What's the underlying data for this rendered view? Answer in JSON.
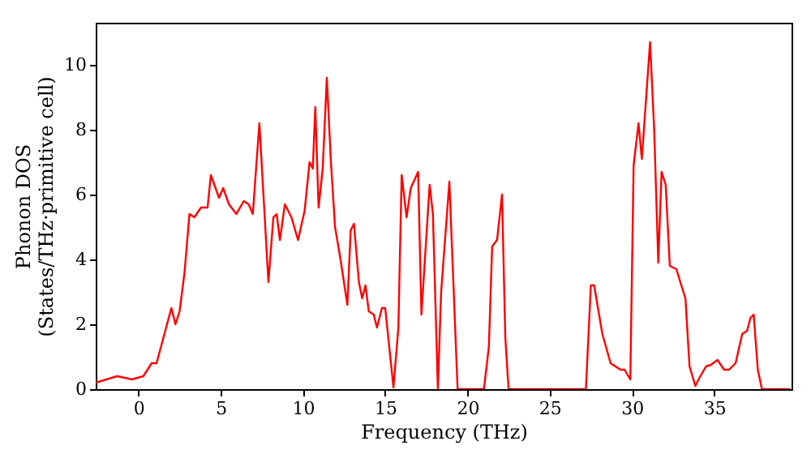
{
  "chart_data": {
    "type": "line",
    "xlabel": "Frequency (THz)",
    "ylabel": "Phonon DOS\n(States/THz·primitive cell)",
    "xlim": [
      -2.6,
      39.7
    ],
    "ylim": [
      0,
      11.3
    ],
    "xticks": [
      0,
      5,
      10,
      15,
      20,
      25,
      30,
      35
    ],
    "yticks": [
      0,
      2,
      4,
      6,
      8,
      10
    ],
    "grid": false,
    "marker": "none",
    "line_style": "solid",
    "series": [
      {
        "color": "#ff0000",
        "x": [
          -2.6,
          -1.3,
          -0.4,
          0.3,
          0.8,
          1.1,
          2.0,
          2.25,
          2.5,
          2.8,
          3.1,
          3.4,
          3.8,
          4.2,
          4.4,
          4.9,
          5.15,
          5.5,
          5.95,
          6.4,
          6.7,
          6.95,
          7.35,
          7.9,
          8.2,
          8.4,
          8.6,
          8.9,
          9.3,
          9.7,
          10.1,
          10.4,
          10.6,
          10.75,
          10.95,
          11.2,
          11.45,
          11.7,
          11.95,
          12.25,
          12.7,
          12.9,
          13.1,
          13.4,
          13.6,
          13.8,
          14.0,
          14.3,
          14.5,
          14.8,
          15.0,
          15.5,
          15.8,
          16.0,
          16.3,
          16.55,
          17.0,
          17.2,
          17.7,
          17.9,
          18.2,
          18.4,
          18.9,
          19.4,
          21.0,
          21.3,
          21.5,
          21.8,
          22.1,
          22.3,
          22.5,
          27.2,
          27.5,
          27.7,
          28.2,
          28.7,
          29.3,
          29.55,
          29.9,
          30.1,
          30.4,
          30.6,
          31.1,
          31.35,
          31.6,
          31.8,
          32.05,
          32.3,
          32.7,
          33.0,
          33.25,
          33.5,
          33.85,
          34.1,
          34.5,
          34.8,
          35.2,
          35.6,
          35.9,
          36.3,
          36.7,
          37.0,
          37.2,
          37.4,
          37.65,
          37.9,
          39.6
        ],
        "values": [
          0.2,
          0.4,
          0.3,
          0.4,
          0.8,
          0.8,
          2.5,
          2.0,
          2.4,
          3.6,
          5.4,
          5.3,
          5.6,
          5.6,
          6.6,
          5.9,
          6.2,
          5.7,
          5.4,
          5.8,
          5.7,
          5.4,
          8.2,
          3.3,
          5.3,
          5.4,
          4.6,
          5.7,
          5.3,
          4.6,
          5.5,
          7.0,
          6.8,
          8.7,
          5.6,
          6.8,
          9.6,
          7.0,
          5.0,
          4.1,
          2.6,
          4.9,
          5.1,
          3.3,
          2.8,
          3.2,
          2.4,
          2.3,
          1.9,
          2.5,
          2.5,
          0.05,
          1.9,
          6.6,
          5.3,
          6.2,
          6.7,
          2.3,
          6.3,
          5.4,
          0,
          3.0,
          6.4,
          0,
          0,
          1.3,
          4.4,
          4.6,
          6.0,
          1.6,
          0,
          0,
          3.2,
          3.2,
          1.7,
          0.8,
          0.6,
          0.6,
          0.3,
          6.9,
          8.2,
          7.1,
          10.7,
          8.0,
          3.9,
          6.7,
          6.3,
          3.8,
          3.7,
          3.2,
          2.8,
          0.7,
          0.1,
          0.35,
          0.7,
          0.75,
          0.9,
          0.6,
          0.6,
          0.8,
          1.7,
          1.8,
          2.2,
          2.3,
          0.6,
          0,
          0
        ]
      }
    ]
  }
}
